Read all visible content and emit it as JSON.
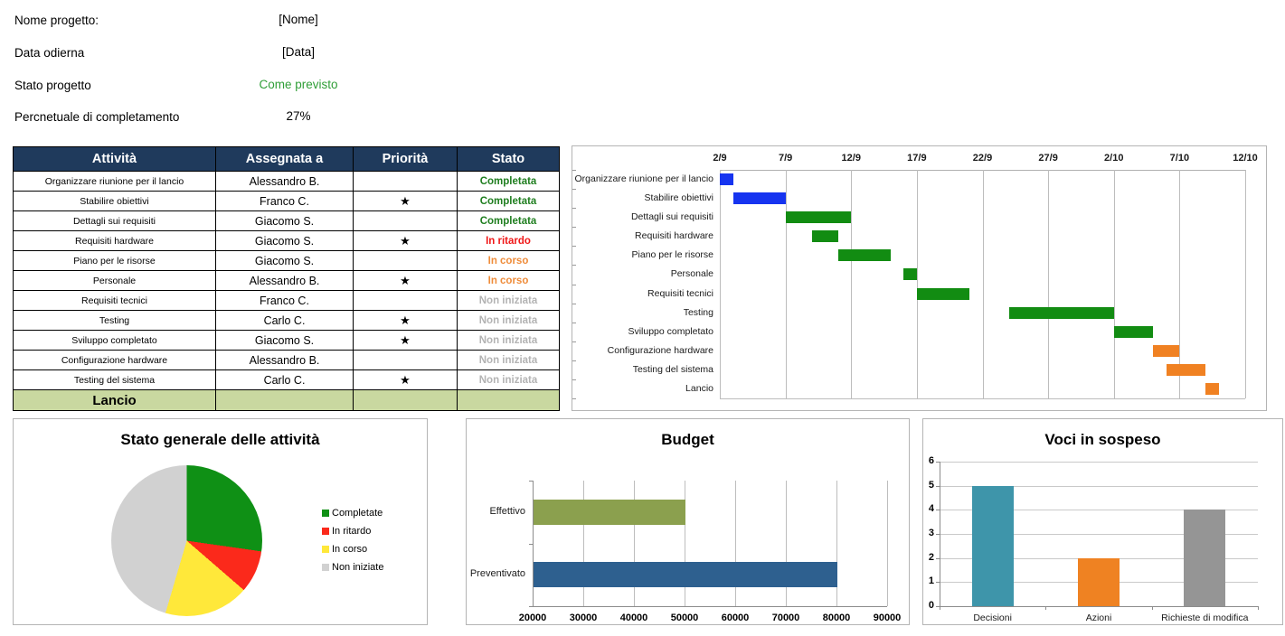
{
  "info": {
    "rows": [
      {
        "label": "Nome progetto:",
        "value": "[Nome]",
        "value_color": "#000000"
      },
      {
        "label": "Data odierna",
        "value": "[Data]",
        "value_color": "#000000"
      },
      {
        "label": "Stato progetto",
        "value": "Come previsto",
        "value_color": "#2f9e37"
      },
      {
        "label": "Percnetuale di completamento",
        "value": "27%",
        "value_color": "#000000"
      }
    ]
  },
  "table": {
    "headers": [
      "Attività",
      "Assegnata a",
      "Priorità",
      "Stato"
    ],
    "status_colors": {
      "Completata": "#1f7e1f",
      "In ritardo": "#f01818",
      "In corso": "#ef8c3a",
      "Non iniziata": "#b3b3b3"
    },
    "rows": [
      {
        "activity": "Organizzare riunione per il lancio",
        "assignee": "Alessandro B.",
        "priority": "",
        "status": "Completata"
      },
      {
        "activity": "Stabilire obiettivi",
        "assignee": "Franco C.",
        "priority": "★",
        "status": "Completata"
      },
      {
        "activity": "Dettagli sui requisiti",
        "assignee": "Giacomo S.",
        "priority": "",
        "status": "Completata"
      },
      {
        "activity": "Requisiti hardware",
        "assignee": "Giacomo S.",
        "priority": "★",
        "status": "In ritardo"
      },
      {
        "activity": "Piano per le risorse",
        "assignee": "Giacomo S.",
        "priority": "",
        "status": "In corso"
      },
      {
        "activity": "Personale",
        "assignee": "Alessandro B.",
        "priority": "★",
        "status": "In corso"
      },
      {
        "activity": "Requisiti tecnici",
        "assignee": "Franco C.",
        "priority": "",
        "status": "Non iniziata"
      },
      {
        "activity": "Testing",
        "assignee": "Carlo C.",
        "priority": "★",
        "status": "Non iniziata"
      },
      {
        "activity": "Sviluppo completato",
        "assignee": "Giacomo S.",
        "priority": "★",
        "status": "Non iniziata"
      },
      {
        "activity": "Configurazione hardware",
        "assignee": "Alessandro B.",
        "priority": "",
        "status": "Non iniziata"
      },
      {
        "activity": "Testing del sistema",
        "assignee": "Carlo C.",
        "priority": "★",
        "status": "Non iniziata"
      },
      {
        "activity": "Lancio",
        "assignee": "",
        "priority": "",
        "status": "",
        "milestone": true
      }
    ]
  },
  "chart_data": [
    {
      "type": "gantt",
      "x_ticks": [
        "2/9",
        "7/9",
        "12/9",
        "17/9",
        "22/9",
        "27/9",
        "2/10",
        "7/10",
        "12/10"
      ],
      "day_span": 40,
      "tick_interval_days": 5,
      "tasks": [
        {
          "label": "Organizzare riunione per il lancio",
          "start": 0,
          "duration": 1,
          "color": "#1634f0"
        },
        {
          "label": "Stabilire obiettivi",
          "start": 1,
          "duration": 4,
          "color": "#1634f0"
        },
        {
          "label": "Dettagli sui requisiti",
          "start": 5,
          "duration": 5,
          "color": "#128c12"
        },
        {
          "label": "Requisiti hardware",
          "start": 7,
          "duration": 2,
          "color": "#128c12"
        },
        {
          "label": "Piano per le risorse",
          "start": 9,
          "duration": 4,
          "color": "#128c12"
        },
        {
          "label": "Personale",
          "start": 14,
          "duration": 1,
          "color": "#128c12"
        },
        {
          "label": "Requisiti tecnici",
          "start": 15,
          "duration": 4,
          "color": "#128c12"
        },
        {
          "label": "Testing",
          "start": 22,
          "duration": 8,
          "color": "#128c12"
        },
        {
          "label": "Sviluppo completato",
          "start": 30,
          "duration": 3,
          "color": "#128c12"
        },
        {
          "label": "Configurazione hardware",
          "start": 33,
          "duration": 2,
          "color": "#f08122"
        },
        {
          "label": "Testing del sistema",
          "start": 34,
          "duration": 3,
          "color": "#f08122"
        },
        {
          "label": "Lancio",
          "start": 37,
          "duration": 1,
          "color": "#f08122"
        }
      ]
    },
    {
      "type": "pie",
      "title": "Stato generale delle attività",
      "labels": [
        "Completate",
        "In ritardo",
        "In corso",
        "Non iniziate"
      ],
      "values": [
        3,
        1,
        2,
        5
      ],
      "colors": [
        "#0f9015",
        "#fb291b",
        "#ffe83a",
        "#d1d1d1"
      ],
      "legend_position": "right",
      "start_angle_deg": 0
    },
    {
      "type": "bar",
      "orientation": "horizontal",
      "title": "Budget",
      "categories": [
        "Effettivo",
        "Preventivato"
      ],
      "values": [
        50000,
        80000
      ],
      "colors": [
        "#8ba04e",
        "#2e608f"
      ],
      "xlim": [
        20000,
        90000
      ],
      "x_ticks": [
        20000,
        30000,
        40000,
        50000,
        60000,
        70000,
        80000,
        90000
      ],
      "grid": true
    },
    {
      "type": "bar",
      "orientation": "vertical",
      "title": "Voci in sospeso",
      "categories": [
        "Decisioni",
        "Azioni",
        "Richieste di modifica"
      ],
      "values": [
        5,
        2,
        4
      ],
      "colors": [
        "#3e95aa",
        "#ef8222",
        "#959595"
      ],
      "ylim": [
        0,
        6
      ],
      "y_ticks": [
        0,
        1,
        2,
        3,
        4,
        5,
        6
      ],
      "grid": true
    }
  ]
}
